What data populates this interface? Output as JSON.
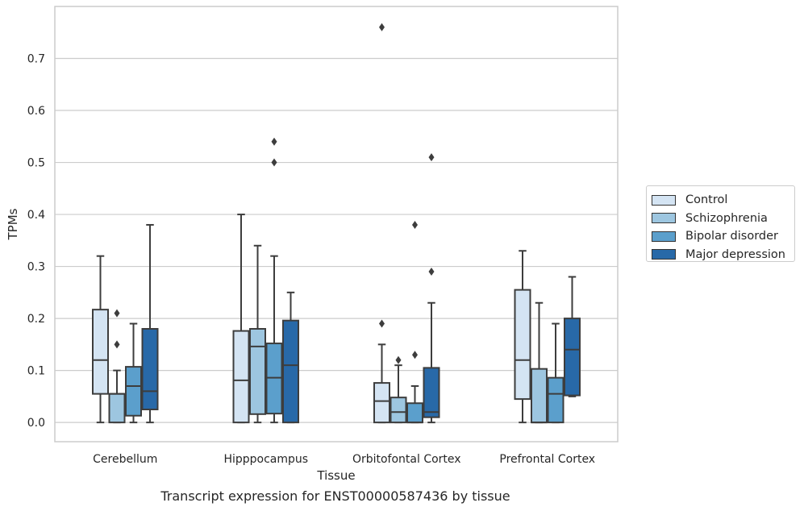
{
  "caption": "Transcript expression for ENST00000587436 by tissue",
  "chart_data": {
    "type": "box",
    "xlabel": "Tissue",
    "ylabel": "TPMs",
    "ylim": [
      -0.037,
      0.8
    ],
    "yticks": [
      "0.0",
      "0.1",
      "0.2",
      "0.3",
      "0.4",
      "0.5",
      "0.6",
      "0.7"
    ],
    "grid": true,
    "legend_position": "right",
    "categories": [
      "Cerebellum",
      "Hipppocampus",
      "Orbitofontal Cortex",
      "Prefrontal Cortex"
    ],
    "series": [
      {
        "name": "Control",
        "color": "#d4e4f3",
        "boxes": [
          {
            "whislo": 0.0,
            "q1": 0.055,
            "med": 0.12,
            "q3": 0.217,
            "whishi": 0.32,
            "fliers": []
          },
          {
            "whislo": 0.0,
            "q1": 0.0,
            "med": 0.081,
            "q3": 0.176,
            "whishi": 0.4,
            "fliers": []
          },
          {
            "whislo": 0.0,
            "q1": 0.0,
            "med": 0.041,
            "q3": 0.076,
            "whishi": 0.15,
            "fliers": [
              0.19,
              0.76
            ]
          },
          {
            "whislo": 0.0,
            "q1": 0.045,
            "med": 0.12,
            "q3": 0.255,
            "whishi": 0.33,
            "fliers": []
          }
        ]
      },
      {
        "name": "Schizophrenia",
        "color": "#9dc6e0",
        "boxes": [
          {
            "whislo": 0.0,
            "q1": 0.0,
            "med": 0.055,
            "q3": 0.055,
            "whishi": 0.1,
            "fliers": [
              0.15,
              0.21
            ]
          },
          {
            "whislo": 0.0,
            "q1": 0.016,
            "med": 0.146,
            "q3": 0.18,
            "whishi": 0.34,
            "fliers": []
          },
          {
            "whislo": 0.0,
            "q1": 0.0,
            "med": 0.02,
            "q3": 0.048,
            "whishi": 0.11,
            "fliers": [
              0.12
            ]
          },
          {
            "whislo": 0.0,
            "q1": 0.0,
            "med": 0.0,
            "q3": 0.103,
            "whishi": 0.23,
            "fliers": []
          }
        ]
      },
      {
        "name": "Bipolar disorder",
        "color": "#5b9fcc",
        "boxes": [
          {
            "whislo": 0.0,
            "q1": 0.013,
            "med": 0.07,
            "q3": 0.107,
            "whishi": 0.19,
            "fliers": []
          },
          {
            "whislo": 0.0,
            "q1": 0.017,
            "med": 0.086,
            "q3": 0.152,
            "whishi": 0.32,
            "fliers": [
              0.5,
              0.54
            ]
          },
          {
            "whislo": 0.0,
            "q1": 0.0,
            "med": 0.0,
            "q3": 0.037,
            "whishi": 0.07,
            "fliers": [
              0.13,
              0.38
            ]
          },
          {
            "whislo": 0.0,
            "q1": 0.0,
            "med": 0.055,
            "q3": 0.086,
            "whishi": 0.19,
            "fliers": []
          }
        ]
      },
      {
        "name": "Major depression",
        "color": "#2869a8",
        "boxes": [
          {
            "whislo": 0.0,
            "q1": 0.025,
            "med": 0.06,
            "q3": 0.18,
            "whishi": 0.38,
            "fliers": []
          },
          {
            "whislo": 0.0,
            "q1": 0.0,
            "med": 0.11,
            "q3": 0.196,
            "whishi": 0.25,
            "fliers": []
          },
          {
            "whislo": 0.0,
            "q1": 0.01,
            "med": 0.02,
            "q3": 0.105,
            "whishi": 0.23,
            "fliers": [
              0.29,
              0.51
            ]
          },
          {
            "whislo": 0.05,
            "q1": 0.052,
            "med": 0.14,
            "q3": 0.2,
            "whishi": 0.28,
            "fliers": []
          }
        ]
      }
    ]
  }
}
